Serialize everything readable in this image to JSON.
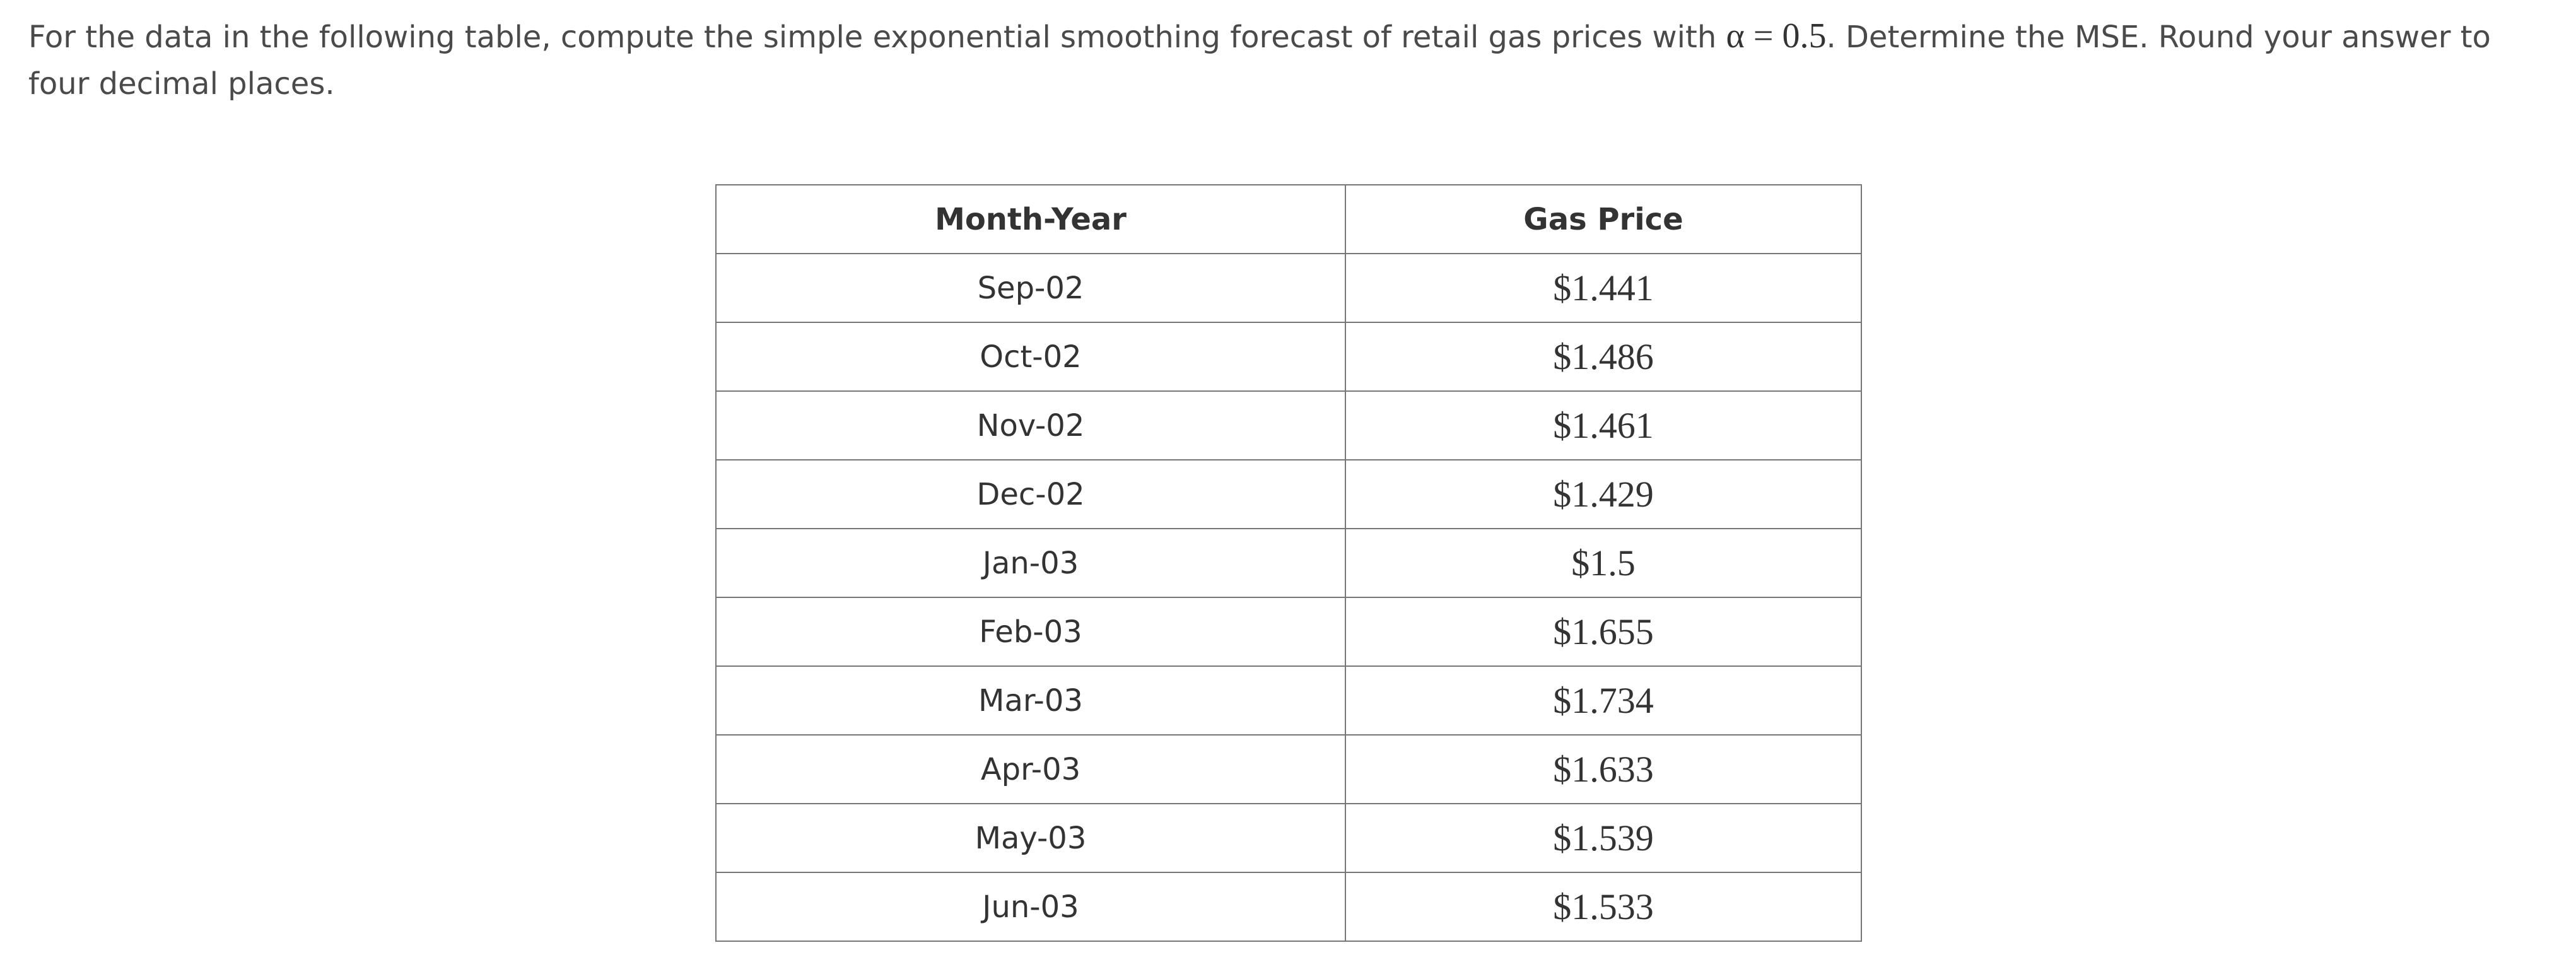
{
  "question": {
    "text_before": "For the data in the following table, compute the simple exponential smoothing forecast of retail gas prices with",
    "math": "α = 0.5",
    "text_after": ". Determine the MSE. Round your answer to four decimal places."
  },
  "table": {
    "header": [
      "Month-Year",
      "Gas Price"
    ],
    "rows": [
      [
        "Sep-02",
        "$1.441"
      ],
      [
        "Oct-02",
        "$1.486"
      ],
      [
        "Nov-02",
        "$1.461"
      ],
      [
        "Dec-02",
        "$1.429"
      ],
      [
        "Jan-03",
        "$1.5"
      ],
      [
        "Feb-03",
        "$1.655"
      ],
      [
        "Mar-03",
        "$1.734"
      ],
      [
        "Apr-03",
        "$1.633"
      ],
      [
        "May-03",
        "$1.539"
      ],
      [
        "Jun-03",
        "$1.533"
      ]
    ]
  }
}
